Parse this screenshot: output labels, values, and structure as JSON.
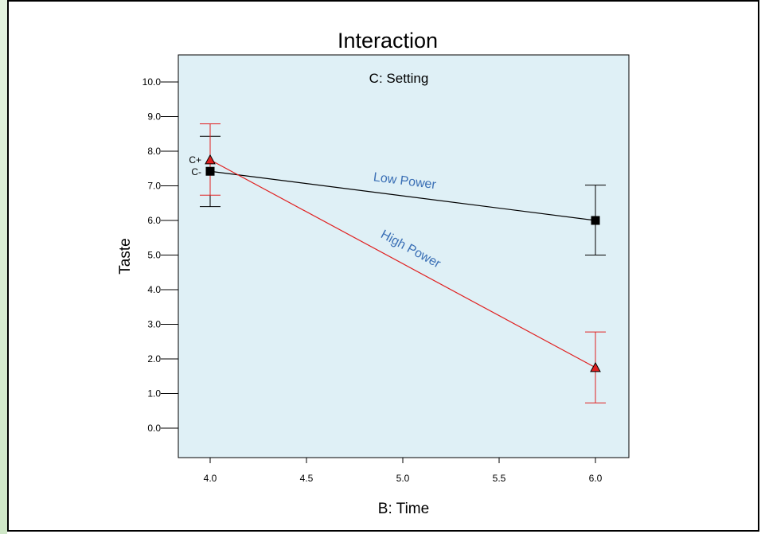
{
  "chart_data": {
    "type": "line",
    "title": "Interaction",
    "subtitle": "C: Setting",
    "xlabel": "B: Time",
    "ylabel": "Taste",
    "xlim": [
      3.85,
      6.17
    ],
    "ylim": [
      -0.9,
      10.9
    ],
    "xticks": [
      4.0,
      4.5,
      5.0,
      5.5,
      6.0
    ],
    "xtick_labels": [
      "4.0",
      "4.5",
      "5.0",
      "5.5",
      "6.0"
    ],
    "yticks": [
      0,
      1,
      2,
      3,
      4,
      5,
      6,
      7,
      8,
      9,
      10
    ],
    "ytick_labels": [
      "0.0",
      "1.0",
      "2.0",
      "3.0",
      "4.0",
      "5.0",
      "6.0",
      "7.0",
      "8.0",
      "9.0",
      "10.0"
    ],
    "background_color": "#dff0f6",
    "series": [
      {
        "legend_key": "C-",
        "name": "Low Power",
        "color": "#000000",
        "label_color": "#3a6fb5",
        "marker": "square",
        "x": [
          4.0,
          6.0
        ],
        "y": [
          7.42,
          6.0
        ],
        "error_low": [
          6.4,
          5.0
        ],
        "error_high": [
          8.43,
          7.02
        ]
      },
      {
        "legend_key": "C+",
        "name": "High Power",
        "color": "#e02020",
        "label_color": "#3a6fb5",
        "marker": "triangle",
        "x": [
          4.0,
          6.0
        ],
        "y": [
          7.75,
          1.75
        ],
        "error_low": [
          6.73,
          0.73
        ],
        "error_high": [
          8.79,
          2.78
        ]
      }
    ]
  }
}
